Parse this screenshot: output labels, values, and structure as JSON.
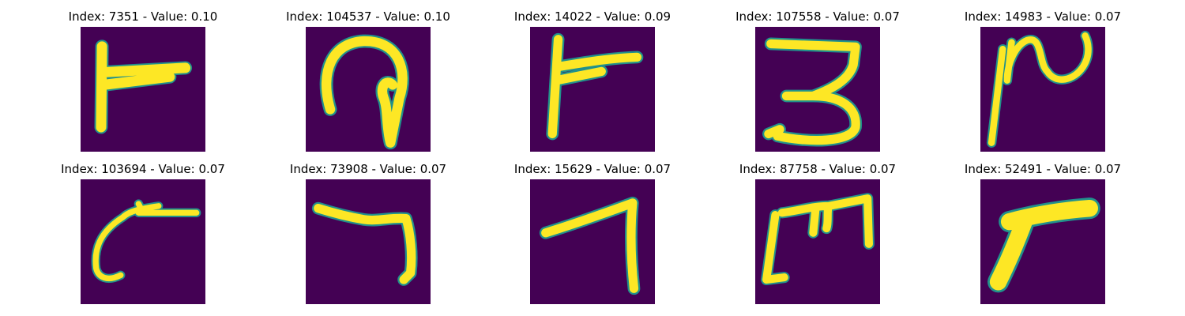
{
  "colors": {
    "background": "#440154",
    "stroke": "#fde725",
    "edge": "#21918c"
  },
  "panels": [
    {
      "title": "Index: 7351 - Value: 0.10",
      "glyph": "glyph-r-shape"
    },
    {
      "title": "Index: 104537 - Value: 0.10",
      "glyph": "glyph-loop-shape"
    },
    {
      "title": "Index: 14022 - Value: 0.09",
      "glyph": "glyph-r-shape"
    },
    {
      "title": "Index: 107558 - Value: 0.07",
      "glyph": "glyph-3-shape"
    },
    {
      "title": "Index: 14983 - Value: 0.07",
      "glyph": "glyph-wave-shape"
    },
    {
      "title": "Index: 103694 - Value: 0.07",
      "glyph": "glyph-hook-shape"
    },
    {
      "title": "Index: 73908 - Value: 0.07",
      "glyph": "glyph-7-shape"
    },
    {
      "title": "Index: 15629 - Value: 0.07",
      "glyph": "glyph-7-shape"
    },
    {
      "title": "Index: 87758 - Value: 0.07",
      "glyph": "glyph-m-shape"
    },
    {
      "title": "Index: 52491 - Value: 0.07",
      "glyph": "glyph-curve-shape"
    }
  ]
}
